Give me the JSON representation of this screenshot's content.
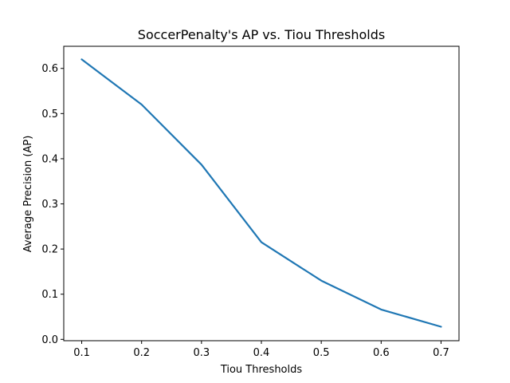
{
  "chart_data": {
    "type": "line",
    "title": "SoccerPenalty's AP vs. Tiou Thresholds",
    "xlabel": "Tiou Thresholds",
    "ylabel": "Average Precision (AP)",
    "x": [
      0.1,
      0.2,
      0.3,
      0.4,
      0.5,
      0.6,
      0.7
    ],
    "series": [
      {
        "values": [
          0.62,
          0.52,
          0.387,
          0.215,
          0.13,
          0.066,
          0.028
        ]
      }
    ],
    "xlim": [
      0.07,
      0.73
    ],
    "ylim": [
      -0.003,
      0.649
    ],
    "xticks": [
      "0.1",
      "0.2",
      "0.3",
      "0.4",
      "0.5",
      "0.6",
      "0.7"
    ],
    "yticks": [
      "0.0",
      "0.1",
      "0.2",
      "0.3",
      "0.4",
      "0.5",
      "0.6"
    ],
    "grid": false,
    "colors": {
      "line": "#1f77b4",
      "axes": "#000000"
    }
  }
}
